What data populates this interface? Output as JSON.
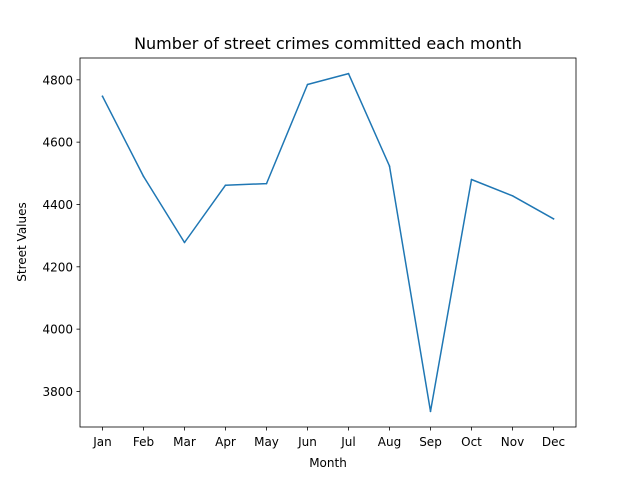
{
  "chart_data": {
    "type": "line",
    "title": "Number of street crimes committed each month",
    "xlabel": "Month",
    "ylabel": "Street Values",
    "categories": [
      "Jan",
      "Feb",
      "Mar",
      "Apr",
      "May",
      "Jun",
      "Jul",
      "Aug",
      "Sep",
      "Oct",
      "Nov",
      "Dec"
    ],
    "series": [
      {
        "values": [
          4747,
          4490,
          4278,
          4462,
          4467,
          4785,
          4820,
          4523,
          3736,
          4480,
          4428,
          4354
        ]
      }
    ],
    "ylim": [
      3686,
      4870
    ],
    "yticks": [
      3800,
      4000,
      4200,
      4400,
      4600,
      4800
    ],
    "grid": false,
    "colors": {
      "line": "#1f77b4"
    }
  }
}
